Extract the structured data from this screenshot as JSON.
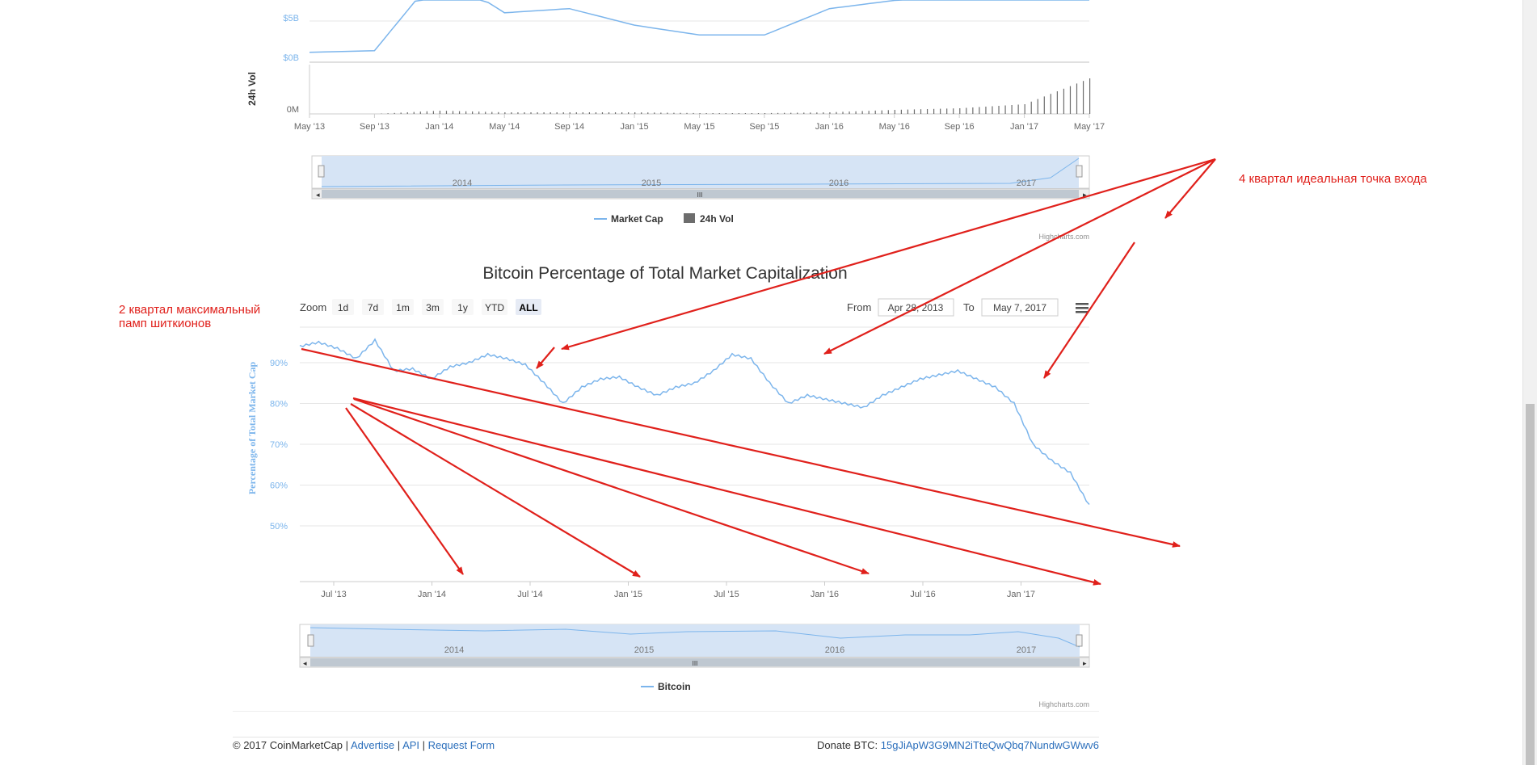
{
  "chart_data": [
    {
      "type": "line",
      "title": "",
      "x": [
        "May '13",
        "Sep '13",
        "Jan '14",
        "May '14",
        "Sep '14",
        "Jan '15",
        "May '15",
        "Sep '15",
        "Jan '16",
        "May '16",
        "Sep '16",
        "Jan '17",
        "May '17"
      ],
      "series": [
        {
          "name": "Market Cap",
          "values": [
            1.2,
            1.4,
            11,
            6,
            6.5,
            4.5,
            3.3,
            3.3,
            6.5,
            7.5,
            9.5,
            14,
            28
          ]
        },
        {
          "name": "24h Vol",
          "values": [
            0,
            0,
            20,
            10,
            10,
            10,
            5,
            5,
            10,
            25,
            35,
            60,
            220
          ]
        }
      ],
      "ylabel": "24h Vol",
      "y_ticks": [
        "$5B",
        "$0B",
        "0M"
      ],
      "navigator_labels": [
        "2014",
        "2015",
        "2016",
        "2017"
      ],
      "credit": "Highcharts.com",
      "legend_position": "bottom"
    },
    {
      "type": "line",
      "title": "Bitcoin Percentage of Total Market Capitalization",
      "ylabel": "Percentage of Total Market Cap",
      "y_ticks": [
        "90%",
        "80%",
        "70%",
        "60%",
        "50%"
      ],
      "ylim": [
        40,
        100
      ],
      "x_ticks": [
        "Jul '13",
        "Jan '14",
        "Jul '14",
        "Jan '15",
        "Jul '15",
        "Jan '16",
        "Jul '16",
        "Jan '17"
      ],
      "series": [
        {
          "name": "Bitcoin",
          "values": [
            94,
            95,
            93.5,
            91,
            95.5,
            88,
            88.5,
            86,
            89,
            90,
            92,
            91,
            89.5,
            85,
            80,
            84,
            86,
            86.5,
            84,
            82,
            84,
            85,
            88,
            92,
            91,
            85,
            80,
            82,
            81,
            80,
            79,
            82,
            84,
            86,
            87,
            88,
            86,
            84,
            80,
            70,
            66,
            63,
            55
          ]
        }
      ],
      "legend_position": "bottom",
      "credit": "Highcharts.com",
      "navigator_labels": [
        "2014",
        "2015",
        "2016",
        "2017"
      ]
    }
  ],
  "rangeselector": {
    "zoom_label": "Zoom",
    "buttons": [
      "1d",
      "7d",
      "1m",
      "3m",
      "1y",
      "YTD",
      "ALL"
    ],
    "from_label": "From",
    "from_value": "Apr 28, 2013",
    "to_label": "To",
    "to_value": "May 7, 2017"
  },
  "annotations": {
    "left_text": "2 квартал максимальный памп шиткионов",
    "right_text": "4 квартал идеальная точка входа",
    "color": "#e0201b"
  },
  "footer": {
    "copyright": "© 2017 CoinMarketCap |",
    "links": [
      "Advertise",
      "API",
      "Request Form"
    ],
    "sep": "|",
    "donate_label": "Donate BTC:",
    "donate_address": "15gJiApW3G9MN2iTteQwQbq7NundwGWwv6"
  },
  "colors": {
    "series_line": "#7cb5ec",
    "volume_bar": "#6d6d6d",
    "navigator_fill": "#d6e4f5",
    "annotation": "#e0201b",
    "link": "#2a6ebb"
  }
}
